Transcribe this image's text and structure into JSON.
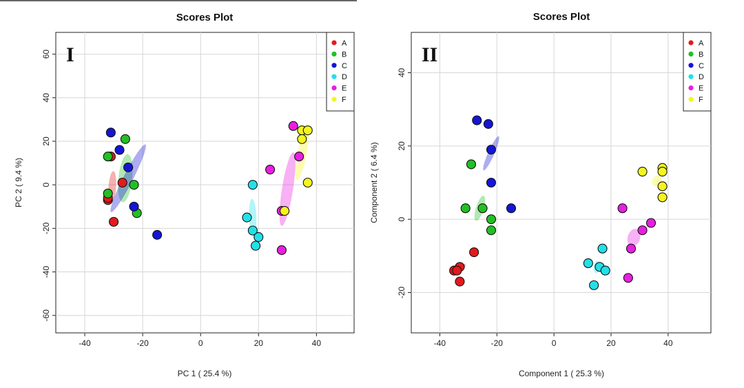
{
  "chart_data": [
    {
      "type": "scatter",
      "panel_label": "I",
      "title": "Scores Plot",
      "xlabel": "PC 1 ( 25.4 %)",
      "ylabel": "PC 2 ( 9.4 %)",
      "xlim": [
        -50,
        53
      ],
      "ylim": [
        -68,
        70
      ],
      "xticks": [
        -40,
        -20,
        0,
        20,
        40
      ],
      "yticks": [
        -60,
        -40,
        -20,
        0,
        20,
        40,
        60
      ],
      "grid": true,
      "legend_position": "top-right",
      "series": [
        {
          "name": "A",
          "color": "#e41a1c",
          "points": [
            [
              -27,
              1
            ],
            [
              -32,
              -7
            ],
            [
              -30,
              -17
            ],
            [
              -32,
              -6
            ],
            [
              -31,
              13
            ]
          ]
        },
        {
          "name": "B",
          "color": "#22c022",
          "points": [
            [
              -26,
              21
            ],
            [
              -32,
              13
            ],
            [
              -23,
              0
            ],
            [
              -32,
              -4
            ],
            [
              -22,
              -13
            ]
          ]
        },
        {
          "name": "C",
          "color": "#1515d5",
          "points": [
            [
              -31,
              24
            ],
            [
              -28,
              16
            ],
            [
              -25,
              8
            ],
            [
              -23,
              -10
            ],
            [
              -15,
              -23
            ]
          ]
        },
        {
          "name": "D",
          "color": "#22e0e8",
          "points": [
            [
              18,
              0
            ],
            [
              16,
              -15
            ],
            [
              18,
              -21
            ],
            [
              20,
              -24
            ],
            [
              19,
              -28
            ]
          ]
        },
        {
          "name": "E",
          "color": "#e81fe0",
          "points": [
            [
              24,
              7
            ],
            [
              32,
              27
            ],
            [
              34,
              13
            ],
            [
              28,
              -30
            ],
            [
              28,
              -12
            ]
          ]
        },
        {
          "name": "F",
          "color": "#f5f51e",
          "points": [
            [
              35,
              25
            ],
            [
              37,
              25
            ],
            [
              35,
              21
            ],
            [
              37,
              1
            ],
            [
              29,
              -12
            ]
          ]
        }
      ],
      "ellipses": [
        {
          "group": "A",
          "color": "#e41a1c",
          "cx": -30.5,
          "cy": -1,
          "rx": 23,
          "ry": 5.5,
          "angle_deg": 86
        },
        {
          "group": "B",
          "color": "#22c022",
          "cx": -26,
          "cy": 3,
          "rx": 35,
          "ry": 10,
          "angle_deg": 84
        },
        {
          "group": "C",
          "color": "#1515d5",
          "cx": -25,
          "cy": 3,
          "rx": 55,
          "ry": 7,
          "angle_deg": 63
        },
        {
          "group": "D",
          "color": "#22e0e8",
          "cx": 18,
          "cy": -15,
          "rx": 27,
          "ry": 5.3,
          "angle_deg": 92
        },
        {
          "group": "E",
          "color": "#e81fe0",
          "cx": 30,
          "cy": -2,
          "rx": 54,
          "ry": 8,
          "angle_deg": 81
        },
        {
          "group": "F",
          "color": "#f5f51e",
          "cx": 35,
          "cy": 14,
          "rx": 38,
          "ry": 6.5,
          "angle_deg": 79
        }
      ]
    },
    {
      "type": "scatter",
      "panel_label": "II",
      "title": "Scores Plot",
      "xlabel": "Component 1 ( 25.3 %)",
      "ylabel": "Component 2 ( 6.4 %)",
      "xlim": [
        -50,
        55
      ],
      "ylim": [
        -31,
        51
      ],
      "xticks": [
        -40,
        -20,
        0,
        20,
        40
      ],
      "yticks": [
        -20,
        0,
        20,
        40
      ],
      "grid": true,
      "legend_position": "top-right",
      "series": [
        {
          "name": "A",
          "color": "#e41a1c",
          "points": [
            [
              -28,
              -9
            ],
            [
              -33,
              -13
            ],
            [
              -35,
              -14
            ],
            [
              -34,
              -14
            ],
            [
              -33,
              -17
            ]
          ]
        },
        {
          "name": "B",
          "color": "#22c022",
          "points": [
            [
              -29,
              15
            ],
            [
              -31,
              3
            ],
            [
              -25,
              3
            ],
            [
              -22,
              0
            ],
            [
              -22,
              -3
            ]
          ]
        },
        {
          "name": "C",
          "color": "#1515d5",
          "points": [
            [
              -27,
              27
            ],
            [
              -23,
              26
            ],
            [
              -22,
              19
            ],
            [
              -22,
              10
            ],
            [
              -15,
              3
            ]
          ]
        },
        {
          "name": "D",
          "color": "#22e0e8",
          "points": [
            [
              17,
              -8
            ],
            [
              12,
              -12
            ],
            [
              16,
              -13
            ],
            [
              18,
              -14
            ],
            [
              14,
              -18
            ]
          ]
        },
        {
          "name": "E",
          "color": "#e81fe0",
          "points": [
            [
              24,
              3
            ],
            [
              34,
              -1
            ],
            [
              31,
              -3
            ],
            [
              27,
              -8
            ],
            [
              26,
              -16
            ]
          ]
        },
        {
          "name": "F",
          "color": "#f5f51e",
          "points": [
            [
              31,
              13
            ],
            [
              38,
              14
            ],
            [
              38,
              13
            ],
            [
              38,
              9
            ],
            [
              38,
              6
            ]
          ]
        }
      ],
      "ellipses": [
        {
          "group": "A",
          "color": "#e41a1c",
          "cx": -32.5,
          "cy": -13.5,
          "rx": 9,
          "ry": 3.5,
          "angle_deg": 48
        },
        {
          "group": "B",
          "color": "#22c022",
          "cx": -26,
          "cy": 3,
          "rx": 19,
          "ry": 5.5,
          "angle_deg": 73
        },
        {
          "group": "C",
          "color": "#1515d5",
          "cx": -22,
          "cy": 18,
          "rx": 27,
          "ry": 4.5,
          "angle_deg": 66
        },
        {
          "group": "D",
          "color": "#22e0e8",
          "cx": 15,
          "cy": -13,
          "rx": 9,
          "ry": 4.5,
          "angle_deg": 82
        },
        {
          "group": "E",
          "color": "#e81fe0",
          "cx": 28,
          "cy": -5,
          "rx": 13,
          "ry": 9,
          "angle_deg": 72
        },
        {
          "group": "F",
          "color": "#f5f51e",
          "cx": 36,
          "cy": 10.5,
          "rx": 8.5,
          "ry": 6.2,
          "angle_deg": 62
        }
      ]
    }
  ]
}
